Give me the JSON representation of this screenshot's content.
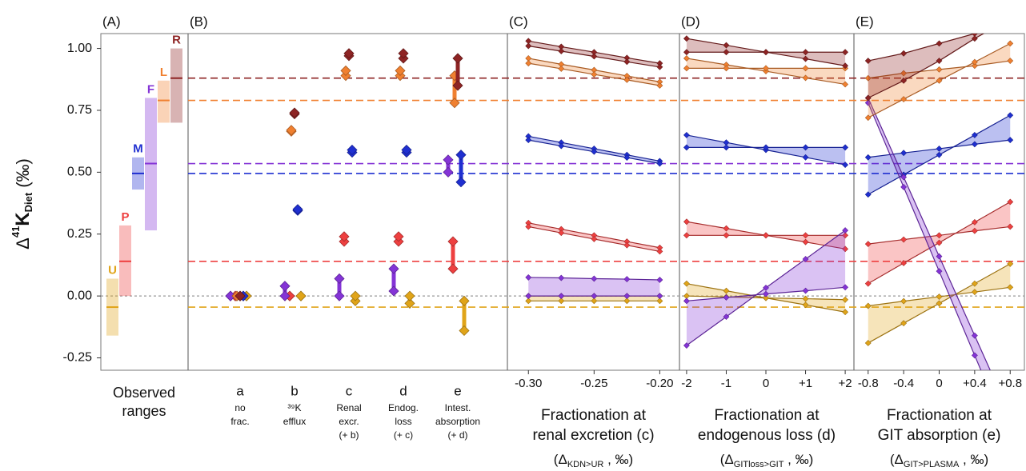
{
  "chart_data": [
    {
      "type": "range",
      "panel": "(A)",
      "y_label": {
        "prefix": "Δ",
        "sup": "41",
        "main": "K",
        "sub": "Diet",
        "suffix": "(‰)"
      },
      "ylim": [
        -0.3,
        1.06
      ],
      "yticks": [
        -0.25,
        {
          "value": 0,
          "label": "0.00"
        },
        {
          "value": 0.25,
          "label": "0.25"
        },
        {
          "value": 0.5,
          "label": "0.50"
        },
        {
          "value": 0.75,
          "label": "0.75"
        },
        {
          "value": 1,
          "label": "1.00"
        }
      ],
      "reference_line": 0,
      "x_label": [
        "Observed",
        "ranges"
      ],
      "series": [
        {
          "name": "U",
          "color": "#e0a419",
          "low": -0.16,
          "high": 0.07,
          "mean": -0.045
        },
        {
          "name": "P",
          "color": "#ee4040",
          "low": 0.0,
          "high": 0.285,
          "mean": 0.14
        },
        {
          "name": "M",
          "color": "#1f2fd0",
          "low": 0.43,
          "high": 0.56,
          "mean": 0.495
        },
        {
          "name": "F",
          "color": "#8434d6",
          "low": 0.265,
          "high": 0.8,
          "mean": 0.535
        },
        {
          "name": "L",
          "color": "#f08030",
          "low": 0.7,
          "high": 0.87,
          "mean": 0.79
        },
        {
          "name": "R",
          "color": "#8e2424",
          "low": 0.7,
          "high": 1.0,
          "mean": 0.88
        }
      ]
    },
    {
      "type": "dot-range",
      "panel": "(B)",
      "categories": [
        "a",
        "b",
        "c",
        "d",
        "e"
      ],
      "sublabels": [
        [
          "no",
          "frac."
        ],
        [
          "³⁹K",
          "efflux"
        ],
        [
          "Renal",
          "excr.",
          "(+ b)"
        ],
        [
          "Endog.",
          "loss",
          "(+ c)"
        ],
        [
          "Intest.",
          "absorption",
          "(+ d)"
        ]
      ],
      "series": [
        {
          "color": "#e0a419",
          "low": [
            0,
            0,
            -0.02,
            -0.03,
            -0.14
          ],
          "high": [
            0,
            0,
            0.0,
            0.0,
            -0.02
          ]
        },
        {
          "color": "#ee4040",
          "low": [
            0,
            0,
            0.22,
            0.22,
            0.11
          ],
          "high": [
            0,
            0,
            0.24,
            0.24,
            0.22
          ]
        },
        {
          "color": "#1f2fd0",
          "low": [
            0,
            0.345,
            0.58,
            0.58,
            0.46
          ],
          "high": [
            0,
            0.35,
            0.59,
            0.59,
            0.57
          ]
        },
        {
          "color": "#8434d6",
          "low": [
            0,
            0.0,
            0.0,
            0.02,
            0.5
          ],
          "high": [
            0,
            0.04,
            0.07,
            0.11,
            0.55
          ]
        },
        {
          "color": "#f08030",
          "low": [
            0,
            0.665,
            0.89,
            0.89,
            0.78
          ],
          "high": [
            0,
            0.67,
            0.91,
            0.91,
            0.89
          ]
        },
        {
          "color": "#8e2424",
          "low": [
            0,
            0.735,
            0.97,
            0.96,
            0.85
          ],
          "high": [
            0,
            0.74,
            0.98,
            0.98,
            0.96
          ]
        }
      ]
    },
    {
      "type": "band",
      "panel": "(C)",
      "x": [
        -0.3,
        -0.275,
        -0.25,
        -0.225,
        -0.2
      ],
      "xlim": [
        -0.316,
        -0.185
      ],
      "xticks": [
        {
          "value": -0.3,
          "label": "-0.30"
        },
        -0.25,
        {
          "value": -0.2,
          "label": "-0.20"
        }
      ],
      "x_label": [
        "Fractionation at",
        "renal excretion (c)"
      ],
      "x_symbol": {
        "open": "(Δ",
        "sub": "KDN>UR",
        "close": " , ‰)"
      },
      "series": [
        {
          "color": "#e0a419",
          "line1": [
            0,
            0,
            0,
            0,
            0
          ],
          "line2": [
            -0.02,
            -0.02,
            -0.02,
            -0.02,
            -0.02
          ]
        },
        {
          "color": "#ee4040",
          "line1": [
            0.295,
            0.27,
            0.245,
            0.22,
            0.195
          ],
          "line2": [
            0.28,
            0.255,
            0.23,
            0.205,
            0.18
          ]
        },
        {
          "color": "#1f2fd0",
          "line1": [
            0.645,
            0.62,
            0.595,
            0.57,
            0.545
          ],
          "line2": [
            0.63,
            0.606,
            0.583,
            0.559,
            0.535
          ]
        },
        {
          "color": "#8434d6",
          "line1": [
            0.075,
            0.073,
            0.07,
            0.068,
            0.065
          ],
          "line2": [
            0,
            0,
            0,
            0,
            0
          ]
        },
        {
          "color": "#f08030",
          "line1": [
            0.96,
            0.936,
            0.913,
            0.889,
            0.865
          ],
          "line2": [
            0.94,
            0.918,
            0.895,
            0.873,
            0.85
          ]
        },
        {
          "color": "#8e2424",
          "line1": [
            1.03,
            1.007,
            0.985,
            0.962,
            0.94
          ],
          "line2": [
            1.01,
            0.989,
            0.968,
            0.946,
            0.925
          ]
        }
      ]
    },
    {
      "type": "band",
      "panel": "(D)",
      "x": [
        -2,
        -1,
        0,
        1,
        2
      ],
      "xlim": [
        -2.18,
        2.22
      ],
      "xticks": [
        -2,
        -1,
        0,
        {
          "value": 1,
          "label": "+1"
        },
        {
          "value": 2,
          "label": "+2"
        }
      ],
      "x_label": [
        "Fractionation at",
        "endogenous loss (d)"
      ],
      "x_symbol": {
        "open": "(Δ",
        "sub": "GITloss>GIT",
        "close": " , ‰)"
      },
      "series": [
        {
          "color": "#e0a419",
          "line1": [
            0.05,
            0.021,
            -0.008,
            -0.036,
            -0.065
          ],
          "line2": [
            0,
            -0.004,
            -0.008,
            -0.011,
            -0.015
          ]
        },
        {
          "color": "#ee4040",
          "line1": [
            0.3,
            0.273,
            0.245,
            0.218,
            0.19
          ],
          "line2": [
            0.245,
            0.245,
            0.245,
            0.245,
            0.245
          ]
        },
        {
          "color": "#1f2fd0",
          "line1": [
            0.65,
            0.62,
            0.59,
            0.56,
            0.53
          ],
          "line2": [
            0.6,
            0.6,
            0.6,
            0.6,
            0.6
          ]
        },
        {
          "color": "#8434d6",
          "line1": [
            -0.2,
            -0.084,
            0.033,
            0.149,
            0.265
          ],
          "line2": [
            -0.02,
            -0.006,
            0.008,
            0.021,
            0.035
          ]
        },
        {
          "color": "#f08030",
          "line1": [
            0.96,
            0.934,
            0.908,
            0.881,
            0.855
          ],
          "line2": [
            0.92,
            0.92,
            0.92,
            0.92,
            0.92
          ]
        },
        {
          "color": "#8e2424",
          "line1": [
            1.04,
            1.013,
            0.985,
            0.958,
            0.93
          ],
          "line2": [
            0.985,
            0.985,
            0.985,
            0.985,
            0.985
          ]
        }
      ]
    },
    {
      "type": "band",
      "panel": "(E)",
      "x": [
        -0.8,
        -0.4,
        0,
        0.4,
        0.8
      ],
      "xlim": [
        -0.96,
        0.96
      ],
      "xticks": [
        -0.8,
        -0.4,
        0,
        {
          "value": 0.4,
          "label": "+0.4"
        },
        {
          "value": 0.8,
          "label": "+0.8"
        }
      ],
      "x_label": [
        "Fractionation at",
        "GIT absorption (e)"
      ],
      "x_symbol": {
        "open": "(Δ",
        "sub": "GIT>PLASMA",
        "close": " , ‰)"
      },
      "series": [
        {
          "color": "#e0a419",
          "line1": [
            -0.04,
            -0.021,
            -0.003,
            0.016,
            0.035
          ],
          "line2": [
            -0.19,
            -0.11,
            -0.03,
            0.05,
            0.13
          ]
        },
        {
          "color": "#ee4040",
          "line1": [
            0.21,
            0.228,
            0.245,
            0.263,
            0.28
          ],
          "line2": [
            0.05,
            0.133,
            0.215,
            0.298,
            0.38
          ]
        },
        {
          "color": "#1f2fd0",
          "line1": [
            0.56,
            0.578,
            0.595,
            0.613,
            0.63
          ],
          "line2": [
            0.41,
            0.49,
            0.57,
            0.65,
            0.73
          ]
        },
        {
          "color": "#8434d6",
          "line1": [
            0.8,
            0.48,
            0.16,
            -0.16,
            -0.48
          ],
          "line2": [
            0.78,
            0.44,
            0.1,
            -0.24,
            -0.58
          ]
        },
        {
          "color": "#f08030",
          "line1": [
            0.88,
            0.9,
            0.915,
            0.93,
            0.95
          ],
          "line2": [
            0.72,
            0.795,
            0.87,
            0.945,
            1.02
          ]
        },
        {
          "color": "#8e2424",
          "line1": [
            0.95,
            0.98,
            1.02,
            1.06,
            1.1
          ],
          "line2": [
            0.8,
            0.87,
            0.95,
            1.04,
            1.12
          ]
        }
      ]
    }
  ]
}
